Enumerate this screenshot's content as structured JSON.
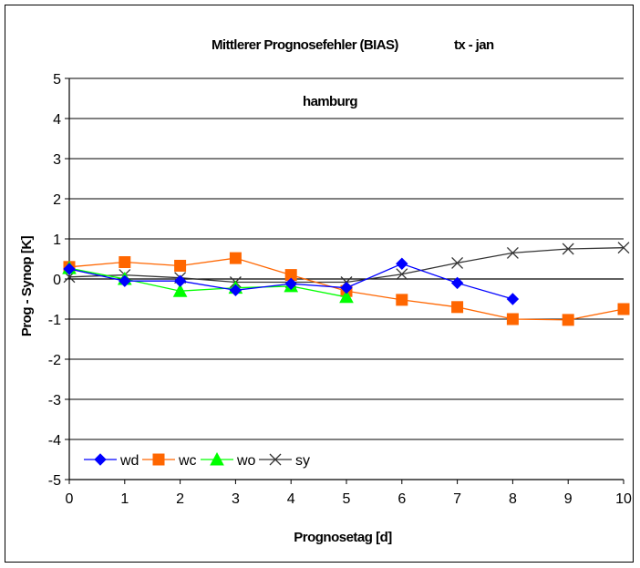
{
  "chart_data": {
    "type": "line",
    "title": "Mittlerer Prognosefehler (BIAS)",
    "title_suffix": "tx - jan",
    "subtitle": "hamburg",
    "xlabel": "Prognosetag [d]",
    "ylabel": "Prog - Synop [K]",
    "xlim": [
      0,
      10
    ],
    "ylim": [
      -5,
      5
    ],
    "x_ticks": [
      "0",
      "1",
      "2",
      "3",
      "4",
      "5",
      "6",
      "7",
      "8",
      "9",
      "10"
    ],
    "y_ticks": [
      "5",
      "4",
      "3",
      "2",
      "1",
      "0",
      "-1",
      "-2",
      "-3",
      "-4",
      "-5"
    ],
    "grid": "horizontal",
    "legend_position": "bottom-left",
    "series": [
      {
        "name": "wd",
        "color": "#0000ff",
        "marker": "diamond",
        "x": [
          0,
          1,
          2,
          3,
          4,
          5,
          6,
          7,
          8
        ],
        "y": [
          0.25,
          -0.05,
          -0.05,
          -0.28,
          -0.12,
          -0.22,
          0.38,
          -0.1,
          -0.5
        ]
      },
      {
        "name": "wc",
        "color": "#ff6600",
        "marker": "square",
        "x": [
          0,
          1,
          2,
          3,
          4,
          5,
          6,
          7,
          8,
          9,
          10
        ],
        "y": [
          0.3,
          0.42,
          0.33,
          0.52,
          0.1,
          -0.3,
          -0.52,
          -0.7,
          -1.0,
          -1.02,
          -0.75
        ]
      },
      {
        "name": "wo",
        "color": "#00ff00",
        "marker": "triangle",
        "x": [
          0,
          1,
          2,
          3,
          4,
          5
        ],
        "y": [
          0.27,
          0.0,
          -0.3,
          -0.22,
          -0.18,
          -0.45
        ]
      },
      {
        "name": "sy",
        "color": "#333333",
        "marker": "x",
        "x": [
          0,
          1,
          2,
          3,
          4,
          5,
          6,
          7,
          8,
          9,
          10
        ],
        "y": [
          0.05,
          0.1,
          0.03,
          -0.08,
          -0.08,
          -0.08,
          0.12,
          0.4,
          0.65,
          0.75,
          0.78
        ]
      }
    ]
  }
}
